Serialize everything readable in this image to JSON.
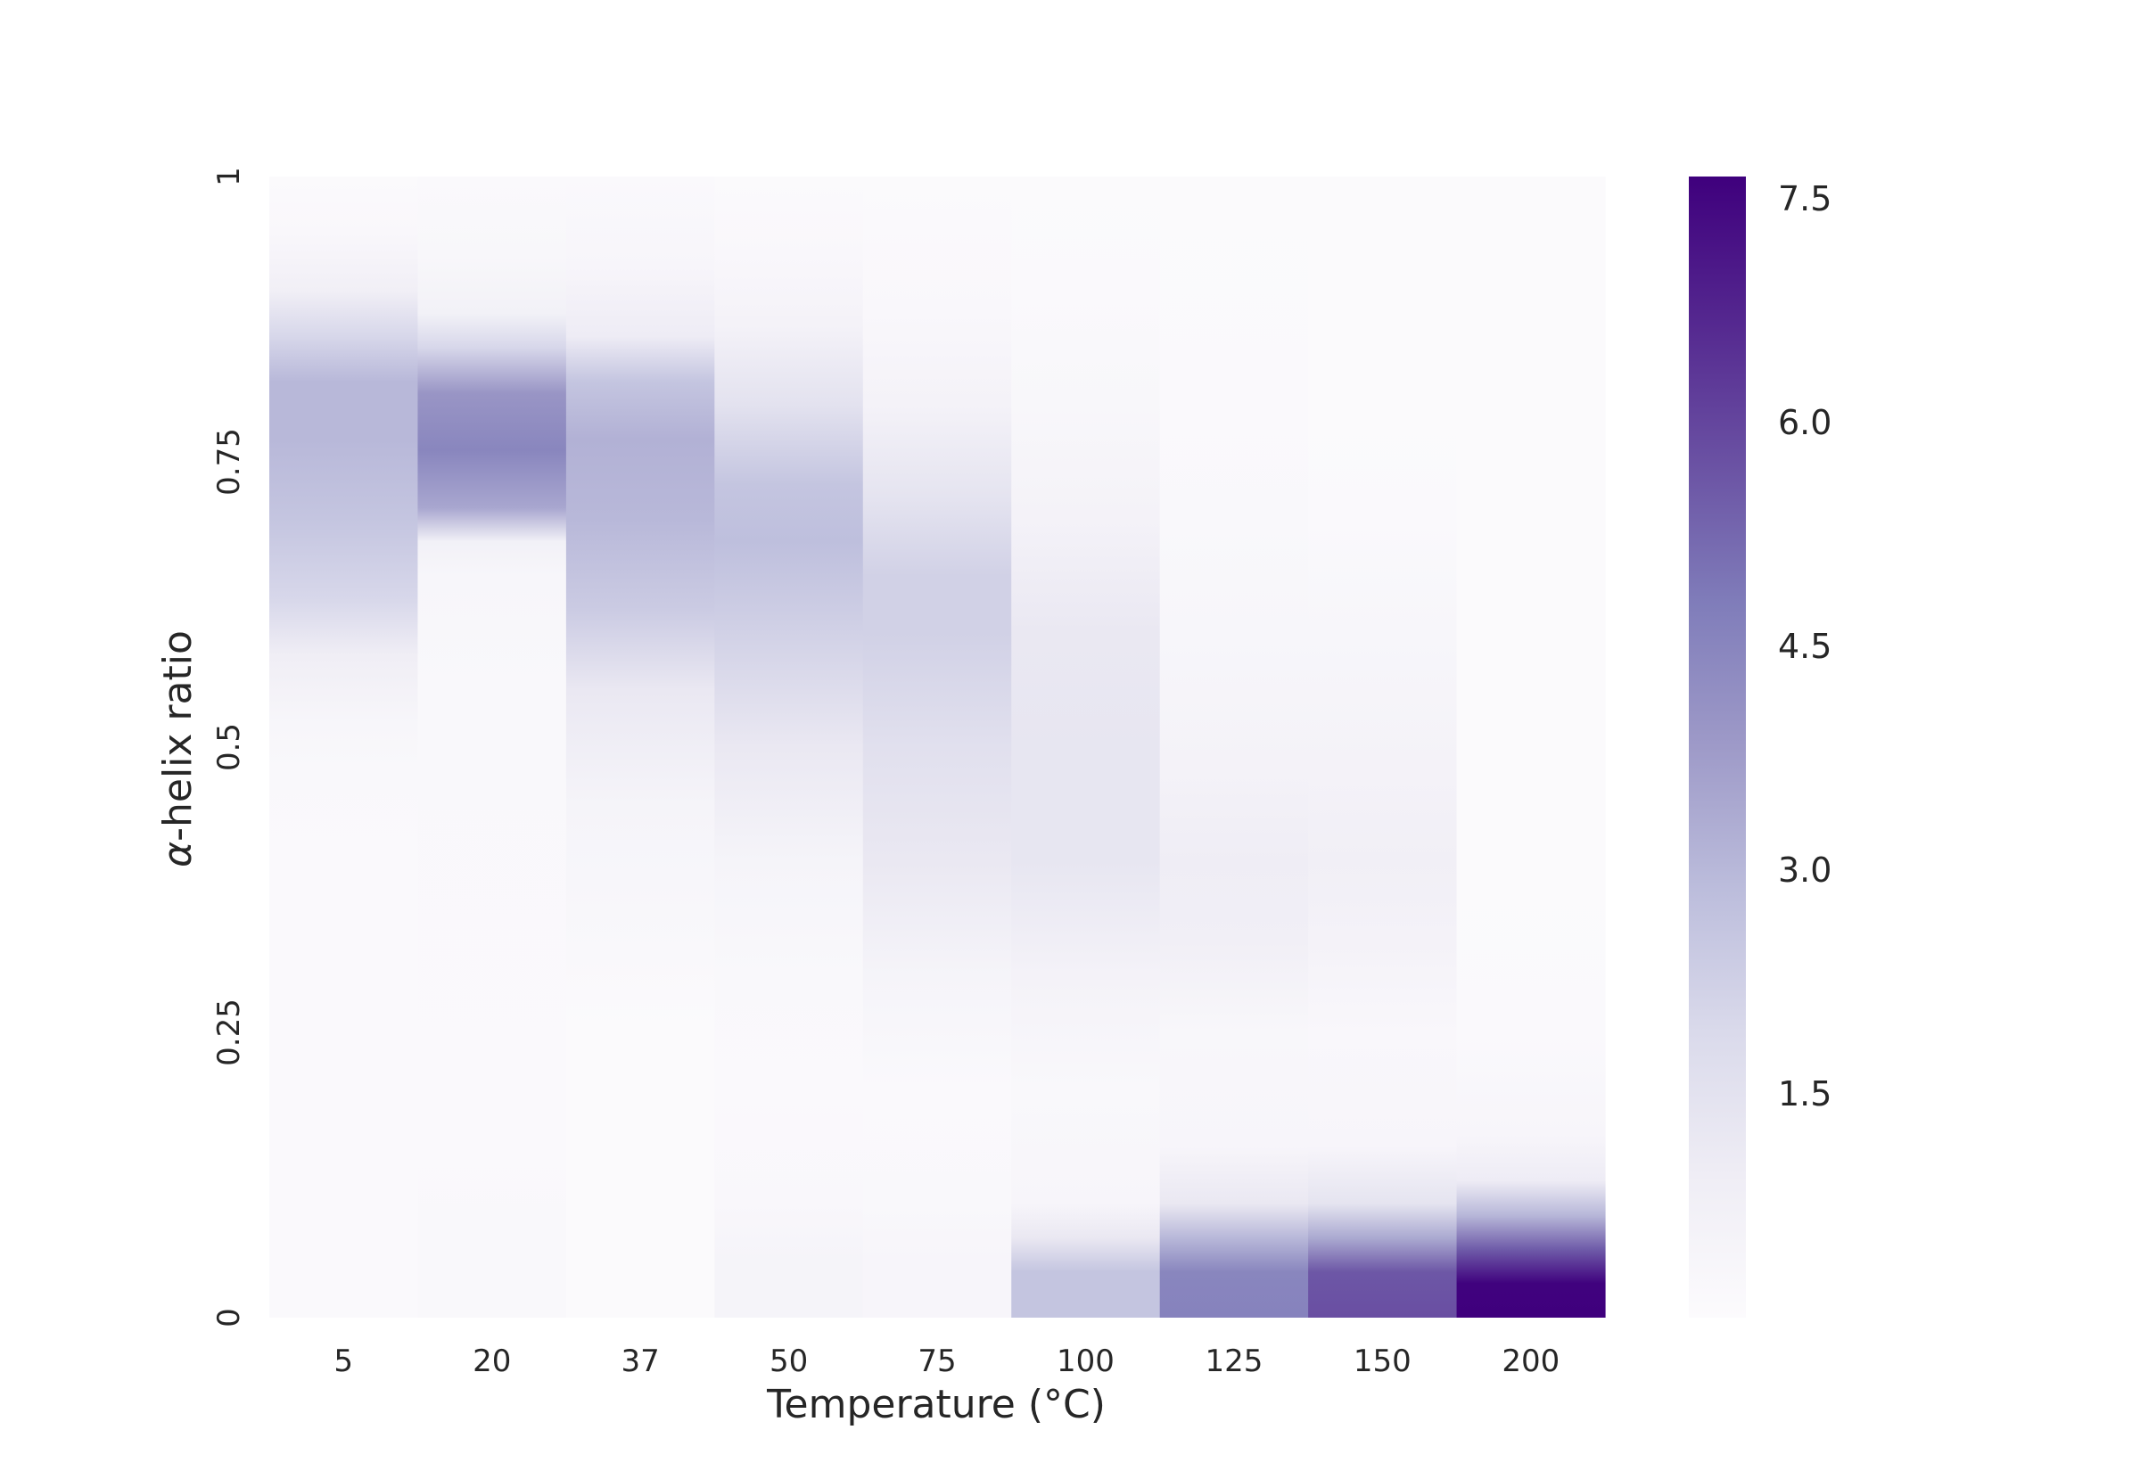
{
  "chart_data": {
    "type": "heatmap",
    "title": "",
    "xlabel": "Temperature (°C)",
    "ylabel_prefix": "α",
    "ylabel_suffix": "-helix ratio",
    "x_categories": [
      "5",
      "20",
      "37",
      "50",
      "75",
      "100",
      "125",
      "150",
      "200"
    ],
    "y_tick_labels": [
      "0",
      "0.25",
      "0.5",
      "0.75",
      "1"
    ],
    "y_tick_values": [
      0,
      0.25,
      0.5,
      0.75,
      1
    ],
    "ylim": [
      0,
      1
    ],
    "colorbar": {
      "tick_labels": [
        "1.5",
        "3.0",
        "4.5",
        "6.0",
        "7.5"
      ],
      "tick_values": [
        1.5,
        3.0,
        4.5,
        6.0,
        7.5
      ],
      "range": [
        0,
        7.65
      ],
      "colormap": "Purples",
      "colors": [
        "#fcfbfd",
        "#efedf5",
        "#dadaeb",
        "#bcbddc",
        "#9e9ac8",
        "#807dba",
        "#6a51a3",
        "#54278f",
        "#3f007d"
      ]
    },
    "profiles": [
      [
        [
          0.0,
          0.15
        ],
        [
          0.08,
          0.15
        ],
        [
          0.15,
          0.12
        ],
        [
          0.4,
          0.12
        ],
        [
          0.48,
          0.2
        ],
        [
          0.52,
          0.35
        ],
        [
          0.58,
          0.9
        ],
        [
          0.63,
          2.0
        ],
        [
          0.7,
          2.6
        ],
        [
          0.77,
          3.0
        ],
        [
          0.82,
          3.0
        ],
        [
          0.86,
          2.0
        ],
        [
          0.9,
          0.8
        ],
        [
          0.95,
          0.25
        ],
        [
          1.0,
          0.1
        ]
      ],
      [
        [
          0.0,
          0.2
        ],
        [
          0.08,
          0.2
        ],
        [
          0.15,
          0.12
        ],
        [
          0.55,
          0.2
        ],
        [
          0.65,
          0.35
        ],
        [
          0.68,
          0.7
        ],
        [
          0.71,
          3.5
        ],
        [
          0.76,
          4.5
        ],
        [
          0.81,
          4.0
        ],
        [
          0.85,
          2.0
        ],
        [
          0.88,
          0.7
        ],
        [
          0.93,
          0.3
        ],
        [
          1.0,
          0.12
        ]
      ],
      [
        [
          0.0,
          0.1
        ],
        [
          0.25,
          0.1
        ],
        [
          0.32,
          0.2
        ],
        [
          0.45,
          0.5
        ],
        [
          0.55,
          1.2
        ],
        [
          0.62,
          2.4
        ],
        [
          0.7,
          3.0
        ],
        [
          0.77,
          3.2
        ],
        [
          0.82,
          2.6
        ],
        [
          0.86,
          1.0
        ],
        [
          0.92,
          0.4
        ],
        [
          1.0,
          0.12
        ]
      ],
      [
        [
          0.0,
          0.5
        ],
        [
          0.05,
          0.5
        ],
        [
          0.1,
          0.25
        ],
        [
          0.2,
          0.15
        ],
        [
          0.3,
          0.2
        ],
        [
          0.4,
          0.5
        ],
        [
          0.5,
          1.2
        ],
        [
          0.6,
          2.2
        ],
        [
          0.68,
          2.8
        ],
        [
          0.73,
          2.6
        ],
        [
          0.8,
          1.5
        ],
        [
          0.87,
          0.6
        ],
        [
          0.93,
          0.25
        ],
        [
          1.0,
          0.1
        ]
      ],
      [
        [
          0.0,
          0.4
        ],
        [
          0.05,
          0.4
        ],
        [
          0.1,
          0.2
        ],
        [
          0.2,
          0.15
        ],
        [
          0.3,
          0.5
        ],
        [
          0.4,
          1.2
        ],
        [
          0.5,
          1.6
        ],
        [
          0.6,
          2.2
        ],
        [
          0.65,
          2.2
        ],
        [
          0.72,
          1.4
        ],
        [
          0.8,
          0.6
        ],
        [
          0.88,
          0.25
        ],
        [
          1.0,
          0.1
        ]
      ],
      [
        [
          0.0,
          2.6
        ],
        [
          0.04,
          2.6
        ],
        [
          0.07,
          1.2
        ],
        [
          0.1,
          0.4
        ],
        [
          0.2,
          0.2
        ],
        [
          0.3,
          0.6
        ],
        [
          0.4,
          1.3
        ],
        [
          0.5,
          1.3
        ],
        [
          0.6,
          1.2
        ],
        [
          0.7,
          0.6
        ],
        [
          0.8,
          0.3
        ],
        [
          0.9,
          0.15
        ],
        [
          1.0,
          0.1
        ]
      ],
      [
        [
          0.0,
          4.6
        ],
        [
          0.04,
          4.5
        ],
        [
          0.07,
          3.0
        ],
        [
          0.1,
          1.2
        ],
        [
          0.15,
          0.4
        ],
        [
          0.25,
          0.3
        ],
        [
          0.33,
          0.8
        ],
        [
          0.4,
          0.95
        ],
        [
          0.48,
          0.6
        ],
        [
          0.6,
          0.35
        ],
        [
          0.7,
          0.2
        ],
        [
          0.8,
          0.12
        ],
        [
          1.0,
          0.08
        ]
      ],
      [
        [
          0.0,
          5.8
        ],
        [
          0.04,
          5.6
        ],
        [
          0.07,
          3.4
        ],
        [
          0.1,
          1.4
        ],
        [
          0.15,
          0.4
        ],
        [
          0.25,
          0.25
        ],
        [
          0.33,
          0.6
        ],
        [
          0.4,
          0.8
        ],
        [
          0.48,
          0.6
        ],
        [
          0.6,
          0.35
        ],
        [
          0.7,
          0.15
        ],
        [
          0.8,
          0.08
        ],
        [
          1.0,
          0.06
        ]
      ],
      [
        [
          0.0,
          7.65
        ],
        [
          0.03,
          7.6
        ],
        [
          0.06,
          5.5
        ],
        [
          0.09,
          3.0
        ],
        [
          0.12,
          1.0
        ],
        [
          0.16,
          0.4
        ],
        [
          0.25,
          0.15
        ],
        [
          0.4,
          0.1
        ],
        [
          1.0,
          0.06
        ]
      ]
    ]
  }
}
